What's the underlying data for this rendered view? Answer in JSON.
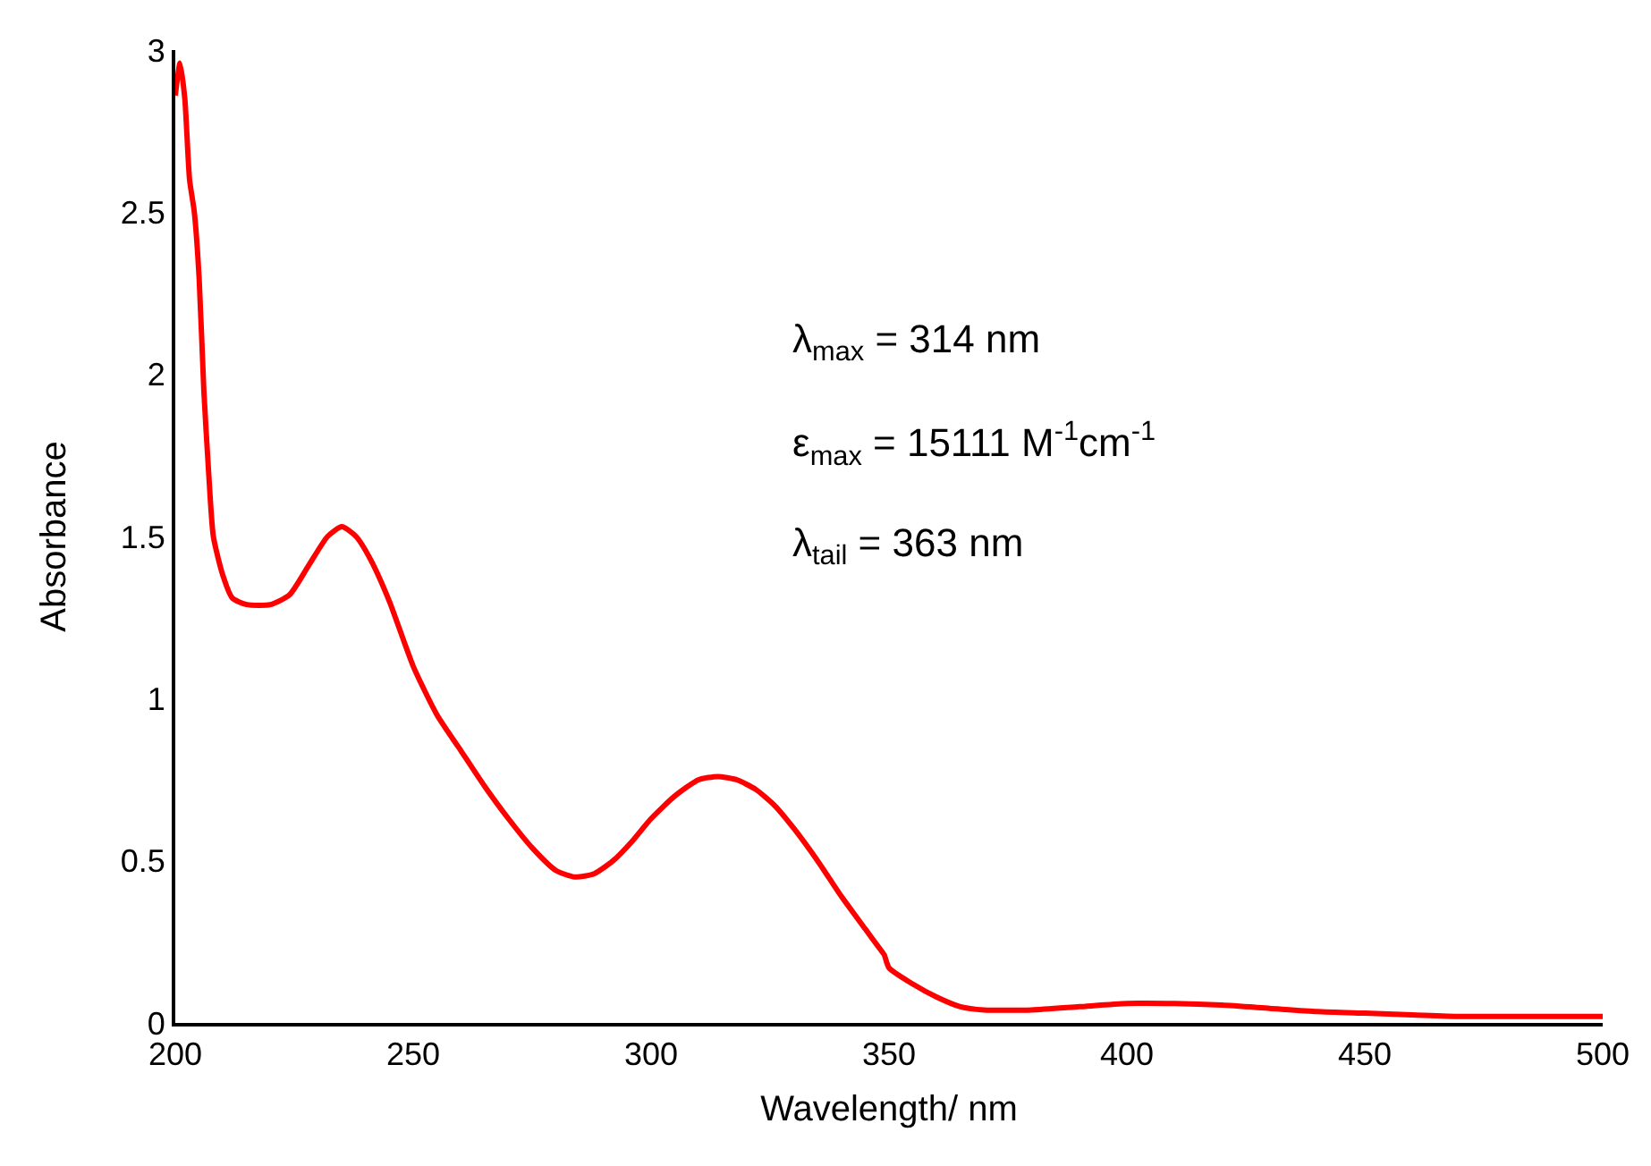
{
  "chart_data": {
    "type": "line",
    "xlabel": "Wavelength/ nm",
    "ylabel": "Absorbance",
    "x": [
      200,
      201,
      202,
      203,
      204,
      205,
      206,
      207,
      208,
      210,
      212,
      215,
      220,
      224,
      228,
      232,
      235,
      238,
      241,
      245,
      250,
      255,
      260,
      265,
      270,
      275,
      280,
      284,
      288,
      292,
      296,
      300,
      305,
      310,
      314,
      318,
      322,
      326,
      330,
      335,
      340,
      345,
      348,
      349,
      350,
      355,
      360,
      365,
      370,
      380,
      390,
      400,
      410,
      420,
      430,
      440,
      450,
      460,
      470,
      480,
      490,
      500
    ],
    "series": [
      {
        "color": "#ff0000",
        "values": [
          2.86,
          2.96,
          2.85,
          2.6,
          2.5,
          2.3,
          1.95,
          1.7,
          1.5,
          1.38,
          1.31,
          1.29,
          1.29,
          1.32,
          1.41,
          1.5,
          1.53,
          1.5,
          1.43,
          1.3,
          1.1,
          0.95,
          0.84,
          0.73,
          0.63,
          0.54,
          0.47,
          0.45,
          0.46,
          0.5,
          0.56,
          0.63,
          0.7,
          0.75,
          0.76,
          0.75,
          0.72,
          0.67,
          0.6,
          0.5,
          0.39,
          0.29,
          0.23,
          0.21,
          0.17,
          0.12,
          0.08,
          0.05,
          0.04,
          0.04,
          0.05,
          0.06,
          0.06,
          0.055,
          0.045,
          0.035,
          0.03,
          0.025,
          0.02,
          0.02,
          0.02,
          0.02
        ]
      }
    ],
    "xlim": [
      200,
      500
    ],
    "xticks": [
      200,
      250,
      300,
      350,
      400,
      450,
      500
    ],
    "ylim": [
      0,
      3
    ],
    "yticks": [
      0,
      0.5,
      1,
      1.5,
      2,
      2.5,
      3
    ],
    "marker": "none",
    "line_style": "solid",
    "annotations": [
      "λ$_{max}$ = 314 nm",
      "ε$_{max}$ = 15111 M$^{-1}$cm$^{-1}$",
      "λ$_{tail}$ = 363 nm"
    ]
  }
}
